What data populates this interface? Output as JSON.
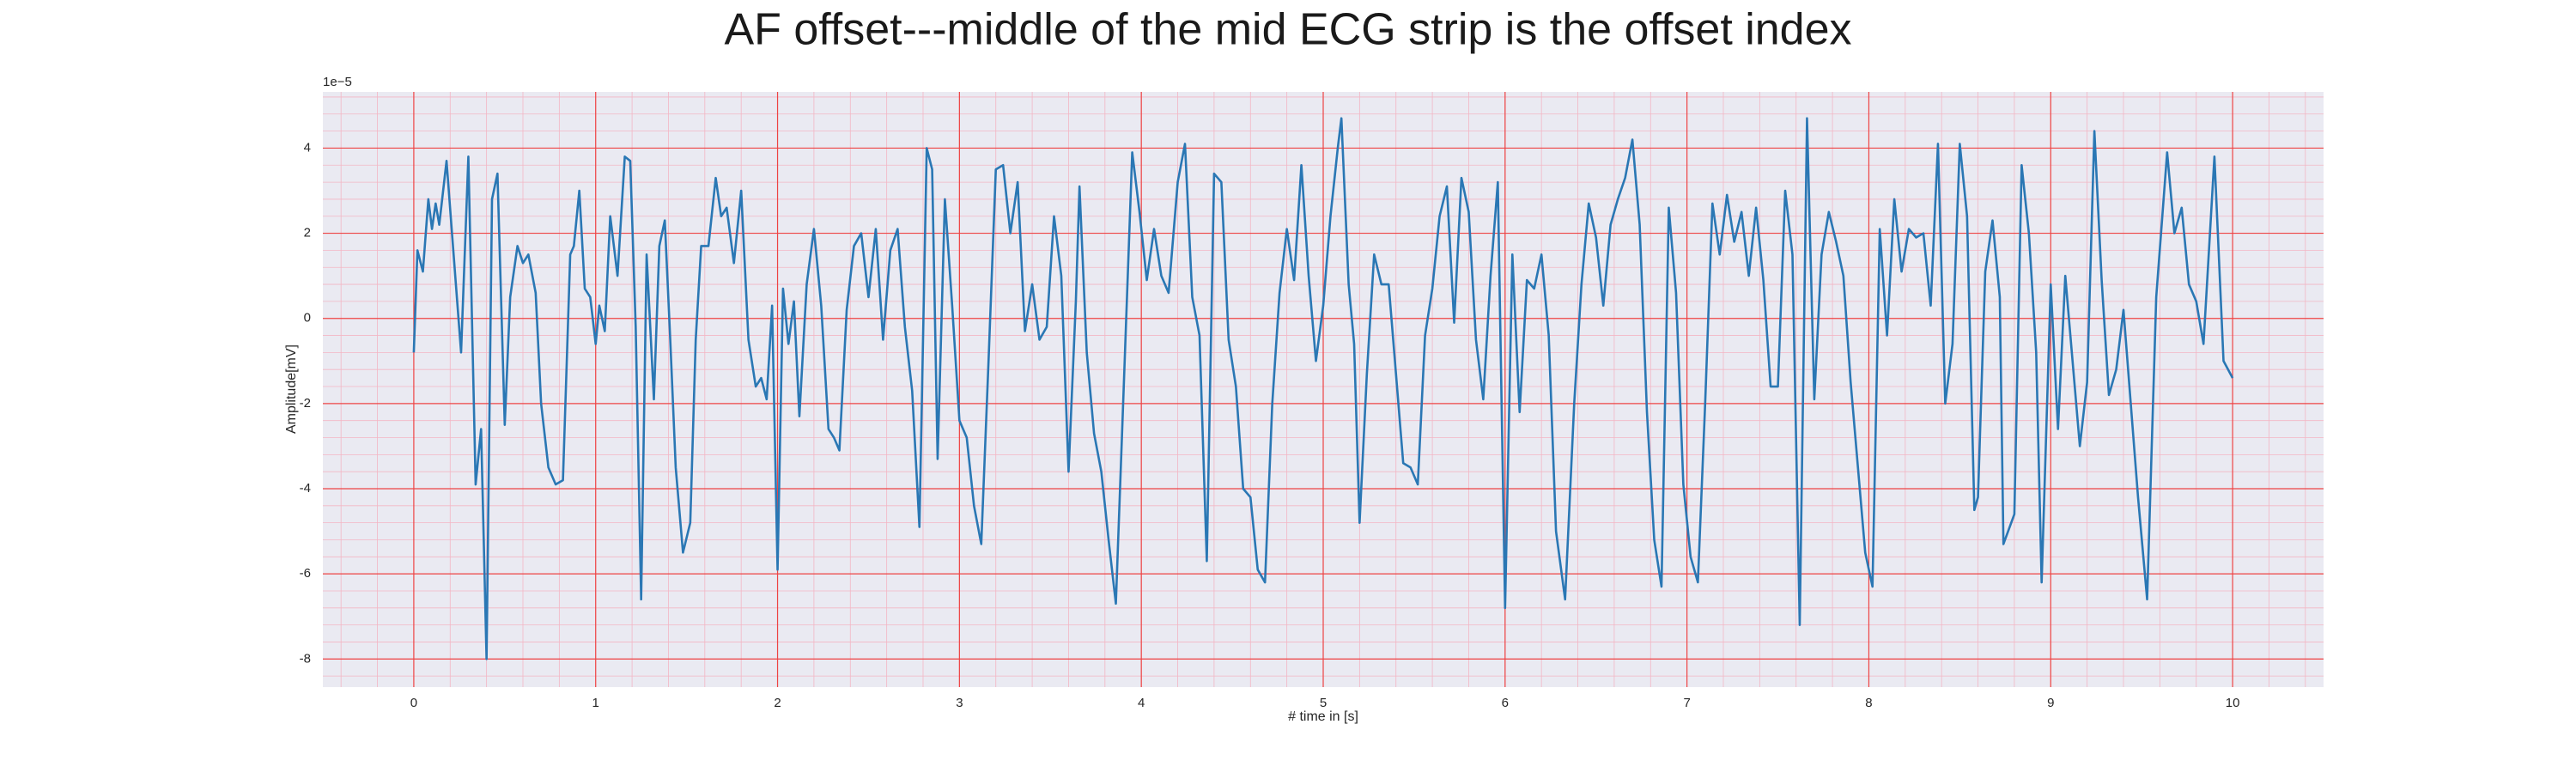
{
  "chart_data": {
    "type": "line",
    "title": "AF offset---middle of the mid ECG strip is the offset index",
    "x_label": "# time in [s]",
    "y_label": "Amplitude[mV]",
    "y_offset_label": "1e−5",
    "color": "#2a77b4",
    "grid": true,
    "minor_grid": true,
    "xlim": [
      -0.5,
      10.5
    ],
    "ylim": [
      -8.66,
      5.32
    ],
    "xticks": [
      0,
      1,
      2,
      3,
      4,
      5,
      6,
      7,
      8,
      9,
      10
    ],
    "yticks": [
      -8,
      -6,
      -4,
      -2,
      0,
      2,
      4
    ],
    "x": [
      0,
      0.02,
      0.05,
      0.08,
      0.1,
      0.12,
      0.14,
      0.18,
      0.21,
      0.26,
      0.3,
      0.34,
      0.37,
      0.4,
      0.43,
      0.46,
      0.5,
      0.53,
      0.57,
      0.6,
      0.63,
      0.67,
      0.7,
      0.74,
      0.78,
      0.82,
      0.86,
      0.88,
      0.91,
      0.94,
      0.97,
      1.0,
      1.02,
      1.05,
      1.08,
      1.12,
      1.16,
      1.19,
      1.22,
      1.25,
      1.28,
      1.32,
      1.35,
      1.38,
      1.41,
      1.44,
      1.48,
      1.52,
      1.55,
      1.58,
      1.62,
      1.66,
      1.69,
      1.72,
      1.76,
      1.8,
      1.84,
      1.88,
      1.91,
      1.94,
      1.97,
      2.0,
      2.03,
      2.06,
      2.09,
      2.12,
      2.16,
      2.2,
      2.24,
      2.28,
      2.31,
      2.34,
      2.38,
      2.42,
      2.46,
      2.5,
      2.54,
      2.58,
      2.62,
      2.66,
      2.7,
      2.74,
      2.78,
      2.82,
      2.85,
      2.88,
      2.92,
      2.96,
      3.0,
      3.04,
      3.08,
      3.12,
      3.16,
      3.2,
      3.24,
      3.28,
      3.32,
      3.36,
      3.4,
      3.44,
      3.48,
      3.52,
      3.56,
      3.6,
      3.64,
      3.66,
      3.7,
      3.74,
      3.78,
      3.82,
      3.86,
      3.9,
      3.95,
      3.99,
      4.03,
      4.07,
      4.11,
      4.15,
      4.2,
      4.24,
      4.28,
      4.32,
      4.36,
      4.4,
      4.44,
      4.48,
      4.52,
      4.56,
      4.6,
      4.64,
      4.68,
      4.72,
      4.76,
      4.8,
      4.84,
      4.88,
      4.92,
      4.96,
      5.0,
      5.04,
      5.08,
      5.1,
      5.14,
      5.17,
      5.2,
      5.24,
      5.28,
      5.32,
      5.36,
      5.4,
      5.44,
      5.48,
      5.52,
      5.56,
      5.6,
      5.64,
      5.68,
      5.72,
      5.76,
      5.8,
      5.84,
      5.88,
      5.92,
      5.96,
      6.0,
      6.04,
      6.08,
      6.12,
      6.16,
      6.2,
      6.24,
      6.28,
      6.33,
      6.38,
      6.42,
      6.46,
      6.5,
      6.54,
      6.58,
      6.62,
      6.66,
      6.7,
      6.74,
      6.78,
      6.82,
      6.86,
      6.9,
      6.94,
      6.98,
      7.02,
      7.06,
      7.1,
      7.14,
      7.18,
      7.22,
      7.26,
      7.3,
      7.34,
      7.38,
      7.42,
      7.46,
      7.5,
      7.54,
      7.58,
      7.62,
      7.66,
      7.7,
      7.74,
      7.78,
      7.82,
      7.86,
      7.9,
      7.94,
      7.98,
      8.02,
      8.06,
      8.1,
      8.14,
      8.18,
      8.22,
      8.26,
      8.3,
      8.34,
      8.38,
      8.42,
      8.46,
      8.5,
      8.54,
      8.58,
      8.6,
      8.64,
      8.68,
      8.72,
      8.74,
      8.8,
      8.84,
      8.88,
      8.92,
      8.95,
      9.0,
      9.04,
      9.08,
      9.12,
      9.16,
      9.2,
      9.24,
      9.28,
      9.32,
      9.36,
      9.4,
      9.44,
      9.48,
      9.53,
      9.58,
      9.64,
      9.68,
      9.72,
      9.76,
      9.8,
      9.84,
      9.9,
      9.95,
      10.0
    ],
    "values": [
      -0.8,
      1.6,
      1.1,
      2.8,
      2.1,
      2.7,
      2.2,
      3.7,
      2.0,
      -0.8,
      3.8,
      -3.9,
      -2.6,
      -8.0,
      2.8,
      3.4,
      -2.5,
      0.5,
      1.7,
      1.3,
      1.5,
      0.6,
      -2.0,
      -3.5,
      -3.9,
      -3.8,
      1.5,
      1.7,
      3.0,
      0.7,
      0.5,
      -0.6,
      0.3,
      -0.3,
      2.4,
      1.0,
      3.8,
      3.7,
      -0.2,
      -6.6,
      1.5,
      -1.9,
      1.7,
      2.3,
      -0.5,
      -3.5,
      -5.5,
      -4.8,
      -0.5,
      1.7,
      1.7,
      3.3,
      2.4,
      2.6,
      1.3,
      3.0,
      -0.5,
      -1.6,
      -1.4,
      -1.9,
      0.3,
      -5.9,
      0.7,
      -0.6,
      0.4,
      -2.3,
      0.8,
      2.1,
      0.3,
      -2.6,
      -2.8,
      -3.1,
      0.2,
      1.7,
      2.0,
      0.5,
      2.1,
      -0.5,
      1.6,
      2.1,
      -0.2,
      -1.7,
      -4.9,
      4.0,
      3.5,
      -3.3,
      2.8,
      0.3,
      -2.4,
      -2.8,
      -4.4,
      -5.3,
      -1.0,
      3.5,
      3.6,
      2.0,
      3.2,
      -0.3,
      0.8,
      -0.5,
      -0.2,
      2.4,
      1.0,
      -3.6,
      0.4,
      3.1,
      -0.8,
      -2.7,
      -3.6,
      -5.2,
      -6.7,
      -2.0,
      3.9,
      2.5,
      0.9,
      2.1,
      1.0,
      0.6,
      3.2,
      4.1,
      0.5,
      -0.4,
      -5.7,
      3.4,
      3.2,
      -0.5,
      -1.6,
      -4.0,
      -4.2,
      -5.9,
      -6.2,
      -2.0,
      0.6,
      2.1,
      0.9,
      3.6,
      1.0,
      -1.0,
      0.3,
      2.4,
      4.0,
      4.7,
      0.8,
      -0.6,
      -4.8,
      -1.3,
      1.5,
      0.8,
      0.8,
      -1.3,
      -3.4,
      -3.5,
      -3.9,
      -0.4,
      0.7,
      2.4,
      3.1,
      -0.1,
      3.3,
      2.5,
      -0.5,
      -1.9,
      1.0,
      3.2,
      -6.8,
      1.5,
      -2.2,
      0.9,
      0.7,
      1.5,
      -0.4,
      -5.0,
      -6.6,
      -2.0,
      0.8,
      2.7,
      1.9,
      0.3,
      2.2,
      2.8,
      3.3,
      4.2,
      2.2,
      -2.2,
      -5.2,
      -6.3,
      2.6,
      0.6,
      -3.9,
      -5.6,
      -6.2,
      -2.0,
      2.7,
      1.5,
      2.9,
      1.8,
      2.5,
      1.0,
      2.6,
      0.9,
      -1.6,
      -1.6,
      3.0,
      1.5,
      -7.2,
      4.7,
      -1.9,
      1.5,
      2.5,
      1.8,
      1.0,
      -1.5,
      -3.5,
      -5.5,
      -6.3,
      2.1,
      -0.4,
      2.8,
      1.1,
      2.1,
      1.9,
      2.0,
      0.3,
      4.1,
      -2.0,
      -0.6,
      4.1,
      2.4,
      -4.5,
      -4.2,
      1.1,
      2.3,
      0.5,
      -5.3,
      -4.6,
      3.6,
      2.0,
      -0.8,
      -6.2,
      0.8,
      -2.6,
      1.0,
      -1.0,
      -3.0,
      -1.5,
      4.4,
      0.9,
      -1.8,
      -1.2,
      0.2,
      -2.0,
      -4.2,
      -6.6,
      0.5,
      3.9,
      2.0,
      2.6,
      0.8,
      0.4,
      -0.6,
      3.8,
      -1.0,
      -1.4
    ]
  }
}
